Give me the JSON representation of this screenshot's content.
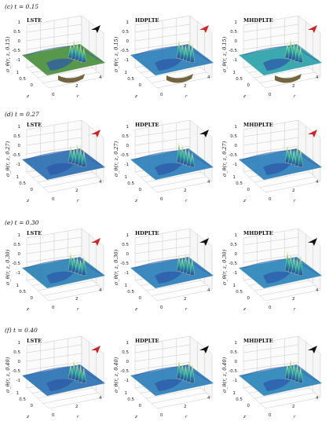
{
  "rows": [
    {
      "label": "(c) t = 0.15",
      "panels": [
        {
          "method": "LSTE",
          "ylabel": "σ_θ(r, z, 0.15)",
          "arrow_color": "#111111",
          "plane_color": "#4a8f3d"
        },
        {
          "method": "HDPLTE",
          "ylabel": "σ_θ(r, z, 0.15)",
          "arrow_color": "#d42020",
          "plane_color": "#2a7fb8"
        },
        {
          "method": "MHDPLTE",
          "ylabel": "σ_θ(r, z, 0.15)",
          "arrow_color": "#d42020",
          "plane_color": "#2aa2a8"
        }
      ]
    },
    {
      "label": "(d) t = 0.27",
      "panels": [
        {
          "method": "LSTE",
          "ylabel": "σ_θ(r, z, 0.27)",
          "arrow_color": "#d42020",
          "plane_color": "#2a6fb0"
        },
        {
          "method": "HDPLTE",
          "ylabel": "σ_θ(r, z, 0.27)",
          "arrow_color": "#111111",
          "plane_color": "#2a7fb8"
        },
        {
          "method": "MHDPLTE",
          "ylabel": "σ_θ(r, z, 0.27)",
          "arrow_color": "#d42020",
          "plane_color": "#2a7fb8"
        }
      ]
    },
    {
      "label": "(e) t = 0.30",
      "panels": [
        {
          "method": "LSTE",
          "ylabel": "σ_θ(r, z, 0.30)",
          "arrow_color": "#d42020",
          "plane_color": "#2a82b4"
        },
        {
          "method": "HDPLTE",
          "ylabel": "σ_θ(r, z, 0.30)",
          "arrow_color": "#111111",
          "plane_color": "#2a7fb8"
        },
        {
          "method": "MHDPLTE",
          "ylabel": "σ_θ(r, z, 0.30)",
          "arrow_color": "#111111",
          "plane_color": "#2a86b8"
        }
      ]
    },
    {
      "label": "(f) t = 0.40",
      "panels": [
        {
          "method": "LSTE",
          "ylabel": "σ_θ(r, z, 0.40)",
          "arrow_color": "#d42020",
          "plane_color": "#2a72b2"
        },
        {
          "method": "HDPLTE",
          "ylabel": "σ_θ(r, z, 0.40)",
          "arrow_color": "#111111",
          "plane_color": "#2a7fb8"
        },
        {
          "method": "MHDPLTE",
          "ylabel": "σ_θ(r, z, 0.40)",
          "arrow_color": "#111111",
          "plane_color": "#2a86b8"
        }
      ]
    }
  ],
  "axes": {
    "z_label": "z",
    "r_label": "r",
    "y_ticks": [
      "1",
      "0.5",
      "0",
      "-0.5",
      "-1"
    ],
    "z_ticks": [
      "1",
      "0.5",
      "0"
    ],
    "r_ticks": [
      "0",
      "2",
      "4"
    ]
  }
}
